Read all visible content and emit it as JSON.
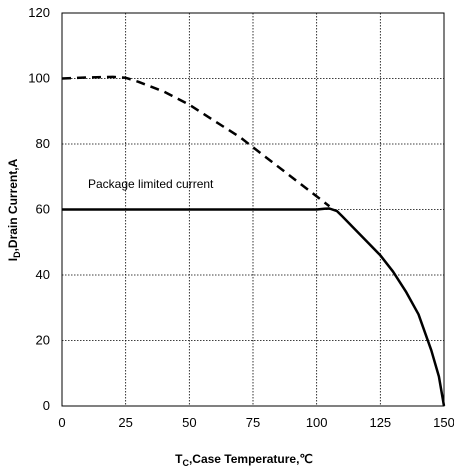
{
  "chart_data": {
    "type": "line",
    "xlabel_main": "T",
    "xlabel_sub": "C",
    "xlabel_rest": ",Case Temperature,℃",
    "ylabel_main": "I",
    "ylabel_sub": "D",
    "ylabel_rest": ",Drain Current,A",
    "xlim": [
      0,
      150
    ],
    "ylim": [
      0,
      120
    ],
    "xticks": [
      0,
      25,
      50,
      75,
      100,
      125,
      150
    ],
    "yticks": [
      0,
      20,
      40,
      60,
      80,
      100,
      120
    ],
    "grid": true,
    "annotation": "Package limited current",
    "series": [
      {
        "style": "dashed",
        "x": [
          0,
          10,
          20,
          25,
          30,
          40,
          50,
          60,
          70,
          80,
          90,
          100,
          105
        ],
        "y": [
          100,
          100.3,
          100.5,
          100.2,
          99,
          96,
          92,
          87,
          82,
          76,
          70,
          64,
          61
        ]
      },
      {
        "style": "solid",
        "x": [
          0,
          25,
          50,
          75,
          100,
          103,
          105,
          108,
          110,
          115,
          120,
          125,
          130,
          135,
          140,
          145,
          148,
          150
        ],
        "y": [
          60,
          60,
          60,
          60,
          60,
          60.2,
          60.3,
          59.5,
          58,
          54,
          50,
          46,
          41,
          35,
          28,
          17,
          9,
          0
        ]
      }
    ]
  }
}
